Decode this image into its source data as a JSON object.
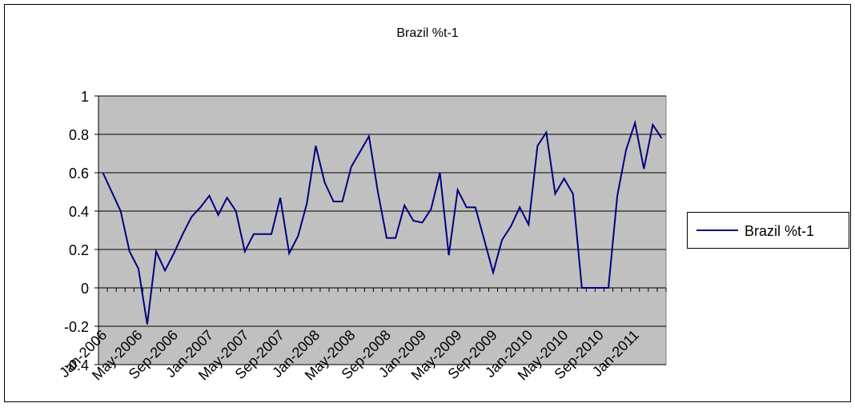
{
  "chart_data": {
    "type": "line",
    "title": "Brazil %t-1",
    "categories": [
      "Jan-2006",
      null,
      null,
      null,
      "May-2006",
      null,
      null,
      null,
      "Sep-2006",
      null,
      null,
      null,
      "Jan-2007",
      null,
      null,
      null,
      "May-2007",
      null,
      null,
      null,
      "Sep-2007",
      null,
      null,
      null,
      "Jan-2008",
      null,
      null,
      null,
      "May-2008",
      null,
      null,
      null,
      "Sep-2008",
      null,
      null,
      null,
      "Jan-2009",
      null,
      null,
      null,
      "May-2009",
      null,
      null,
      null,
      "Sep-2009",
      null,
      null,
      null,
      "Jan-2010",
      null,
      null,
      null,
      "May-2010",
      null,
      null,
      null,
      "Sep-2010",
      null,
      null,
      null,
      "Jan-2011",
      null,
      null,
      null
    ],
    "series": [
      {
        "name": "Brazil %t-1",
        "color": "#000080",
        "values": [
          0.6,
          0.5,
          0.4,
          0.19,
          0.1,
          -0.19,
          0.19,
          0.09,
          0.18,
          0.28,
          0.37,
          0.42,
          0.48,
          0.38,
          0.47,
          0.4,
          0.19,
          0.28,
          0.28,
          0.28,
          0.47,
          0.18,
          0.27,
          0.44,
          0.74,
          0.55,
          0.45,
          0.45,
          0.63,
          0.71,
          0.79,
          0.5,
          0.26,
          0.26,
          0.43,
          0.35,
          0.34,
          0.41,
          0.6,
          0.17,
          0.51,
          0.42,
          0.42,
          0.25,
          0.08,
          0.25,
          0.32,
          0.42,
          0.33,
          0.74,
          0.81,
          0.49,
          0.57,
          0.49,
          0,
          0,
          0,
          0,
          0.48,
          0.72,
          0.86,
          0.62,
          0.85,
          0.78
        ]
      }
    ],
    "ylim": [
      -0.4,
      1
    ],
    "yticks": [
      -0.4,
      -0.2,
      0,
      0.2,
      0.4,
      0.6,
      0.8,
      1
    ],
    "grid": true,
    "legend": "right"
  }
}
